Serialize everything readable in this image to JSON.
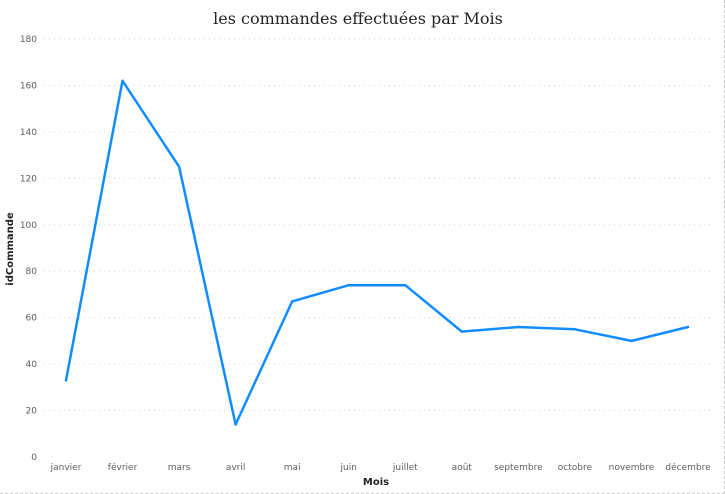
{
  "chart_data": {
    "type": "line",
    "title": "les commandes effectuées par Mois",
    "xlabel": "Mois",
    "ylabel": "idCommande",
    "categories": [
      "janvier",
      "février",
      "mars",
      "avril",
      "mai",
      "juin",
      "juillet",
      "août",
      "septembre",
      "octobre",
      "novembre",
      "décembre"
    ],
    "series": [
      {
        "values": [
          33,
          162,
          125,
          14,
          67,
          74,
          74,
          54,
          56,
          55,
          50,
          56
        ]
      }
    ],
    "ylim": [
      0,
      180
    ],
    "yticks": [
      "0",
      "20",
      "40",
      "60",
      "80",
      "100",
      "120",
      "140",
      "160",
      "180"
    ],
    "grid": true,
    "legend": "none",
    "colors": {
      "line": "#118dff"
    }
  }
}
